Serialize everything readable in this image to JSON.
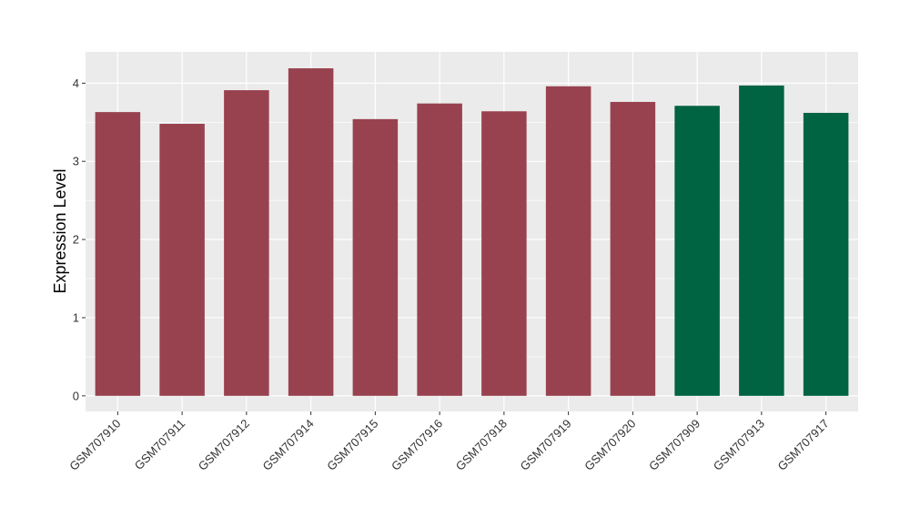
{
  "chart_data": {
    "type": "bar",
    "title": "",
    "xlabel": "",
    "ylabel": "Expression Level",
    "ylim": [
      -0.2,
      4.4
    ],
    "yticks": [
      0,
      1,
      2,
      3,
      4
    ],
    "grid": true,
    "legend": "none",
    "background": "#EBEBEB",
    "categories": [
      "GSM707910",
      "GSM707911",
      "GSM707912",
      "GSM707914",
      "GSM707915",
      "GSM707916",
      "GSM707918",
      "GSM707919",
      "GSM707920",
      "GSM707909",
      "GSM707913",
      "GSM707917"
    ],
    "values": [
      3.63,
      3.48,
      3.91,
      4.19,
      3.54,
      3.74,
      3.64,
      3.96,
      3.76,
      3.71,
      3.97,
      3.62
    ],
    "bar_colors": [
      "#99424F",
      "#99424F",
      "#99424F",
      "#99424F",
      "#99424F",
      "#99424F",
      "#99424F",
      "#99424F",
      "#99424F",
      "#006342",
      "#006342",
      "#006342"
    ]
  }
}
